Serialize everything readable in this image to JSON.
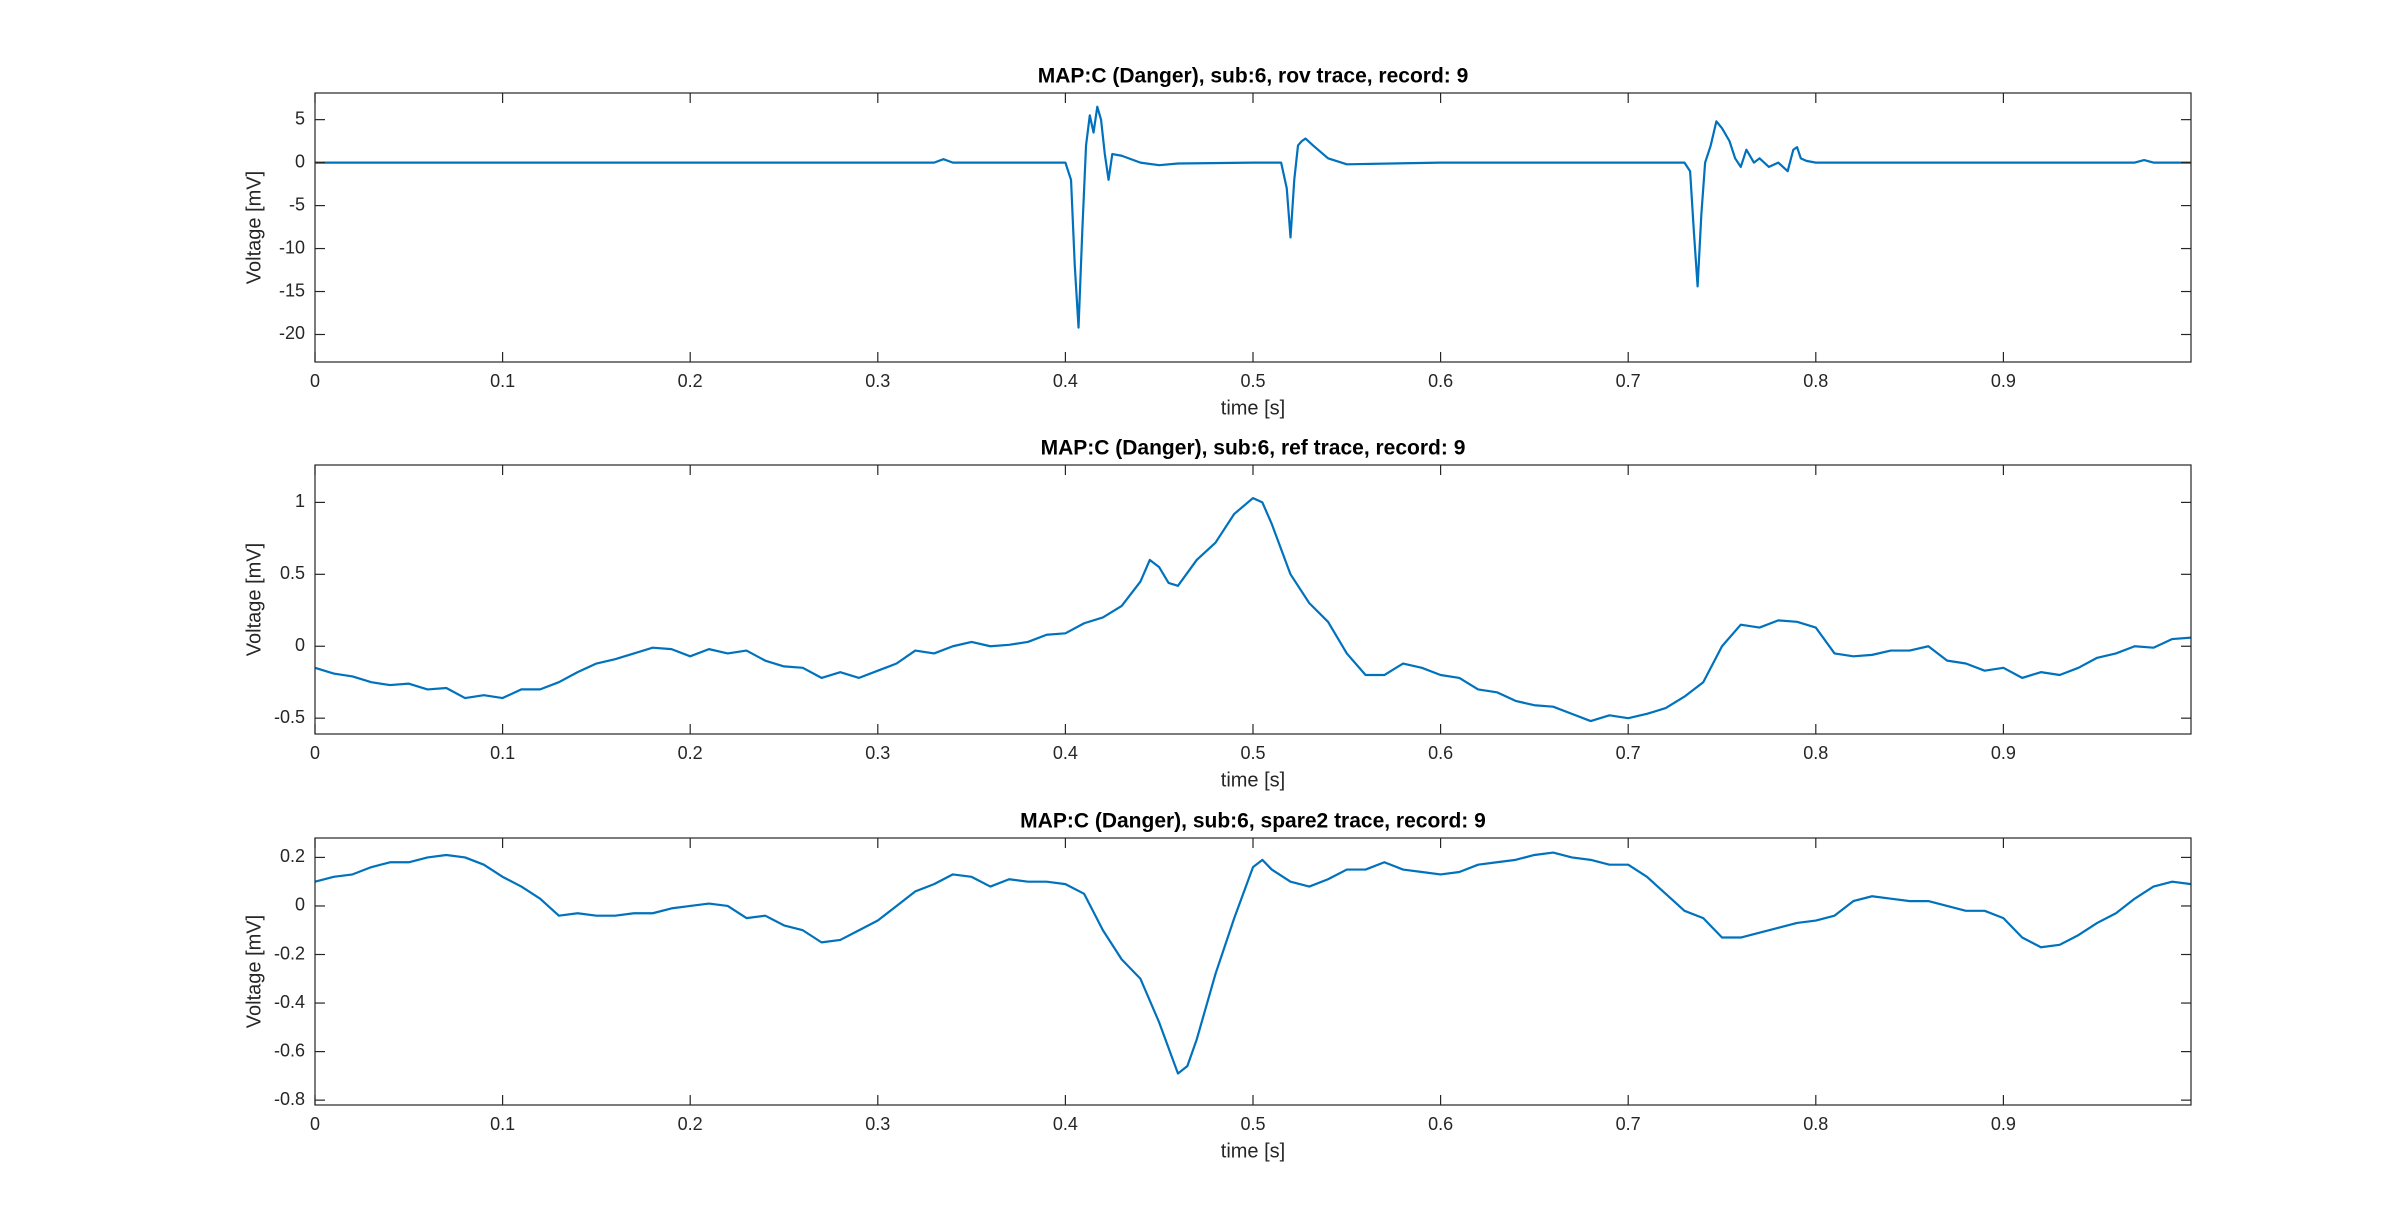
{
  "chart_data": [
    {
      "type": "line",
      "title": "MAP:C (Danger), sub:6, rov trace, record: 9",
      "xlabel": "time [s]",
      "ylabel": "Voltage [mV]",
      "x": [
        0,
        0.1,
        0.2,
        0.3,
        0.33,
        0.335,
        0.34,
        0.4,
        0.403,
        0.405,
        0.407,
        0.409,
        0.411,
        0.413,
        0.415,
        0.417,
        0.419,
        0.421,
        0.423,
        0.425,
        0.43,
        0.44,
        0.45,
        0.46,
        0.5,
        0.515,
        0.518,
        0.52,
        0.522,
        0.524,
        0.526,
        0.528,
        0.532,
        0.54,
        0.55,
        0.6,
        0.7,
        0.73,
        0.733,
        0.735,
        0.737,
        0.739,
        0.741,
        0.744,
        0.747,
        0.75,
        0.754,
        0.757,
        0.76,
        0.763,
        0.767,
        0.77,
        0.775,
        0.78,
        0.785,
        0.788,
        0.79,
        0.792,
        0.795,
        0.8,
        0.9,
        0.97,
        0.975,
        0.98,
        1.0
      ],
      "series": [
        {
          "color": "#0072bd",
          "values": [
            0,
            0,
            0,
            0,
            0,
            0.4,
            0,
            0,
            -2,
            -12,
            -19.2,
            -8,
            2,
            5.5,
            3.5,
            6.5,
            5,
            1,
            -2,
            1,
            0.8,
            0,
            -0.3,
            -0.1,
            0,
            0,
            -3,
            -8.7,
            -2,
            2,
            2.5,
            2.8,
            2,
            0.5,
            -0.2,
            0,
            0,
            0,
            -1,
            -8,
            -14.4,
            -6,
            0,
            2,
            4.8,
            4,
            2.5,
            0.5,
            -0.5,
            1.5,
            0,
            0.5,
            -0.5,
            0,
            -1,
            1.5,
            1.8,
            0.5,
            0.2,
            0,
            0,
            0,
            0.3,
            0,
            0
          ]
        }
      ],
      "xlim": [
        0,
        1
      ],
      "ylim": [
        -23.2,
        8.1
      ],
      "xticks": [
        0,
        0.1,
        0.2,
        0.3,
        0.4,
        0.5,
        0.6,
        0.7,
        0.8,
        0.9
      ],
      "yticks": [
        -20,
        -15,
        -10,
        -5,
        0,
        5
      ]
    },
    {
      "type": "line",
      "title": "MAP:C (Danger), sub:6, ref trace, record: 9",
      "xlabel": "time [s]",
      "ylabel": "Voltage [mV]",
      "x": [
        0,
        0.01,
        0.02,
        0.03,
        0.04,
        0.05,
        0.06,
        0.07,
        0.08,
        0.09,
        0.1,
        0.11,
        0.12,
        0.13,
        0.14,
        0.15,
        0.16,
        0.17,
        0.18,
        0.19,
        0.2,
        0.21,
        0.22,
        0.23,
        0.24,
        0.25,
        0.26,
        0.27,
        0.28,
        0.29,
        0.3,
        0.31,
        0.32,
        0.33,
        0.34,
        0.35,
        0.36,
        0.37,
        0.38,
        0.39,
        0.4,
        0.41,
        0.42,
        0.43,
        0.44,
        0.445,
        0.45,
        0.455,
        0.46,
        0.47,
        0.48,
        0.49,
        0.5,
        0.505,
        0.51,
        0.52,
        0.53,
        0.54,
        0.55,
        0.56,
        0.57,
        0.58,
        0.59,
        0.6,
        0.61,
        0.62,
        0.63,
        0.64,
        0.65,
        0.66,
        0.67,
        0.68,
        0.69,
        0.7,
        0.71,
        0.72,
        0.73,
        0.74,
        0.75,
        0.76,
        0.77,
        0.78,
        0.79,
        0.8,
        0.81,
        0.82,
        0.83,
        0.84,
        0.85,
        0.86,
        0.87,
        0.88,
        0.89,
        0.9,
        0.91,
        0.92,
        0.93,
        0.94,
        0.95,
        0.96,
        0.97,
        0.98,
        0.99,
        1.0
      ],
      "series": [
        {
          "color": "#0072bd",
          "values": [
            -0.15,
            -0.19,
            -0.21,
            -0.25,
            -0.27,
            -0.26,
            -0.3,
            -0.29,
            -0.36,
            -0.34,
            -0.36,
            -0.3,
            -0.3,
            -0.25,
            -0.18,
            -0.12,
            -0.09,
            -0.05,
            -0.01,
            -0.02,
            -0.07,
            -0.02,
            -0.05,
            -0.03,
            -0.1,
            -0.14,
            -0.15,
            -0.22,
            -0.18,
            -0.22,
            -0.17,
            -0.12,
            -0.03,
            -0.05,
            0,
            0.03,
            0,
            0.01,
            0.03,
            0.08,
            0.09,
            0.16,
            0.2,
            0.28,
            0.45,
            0.6,
            0.55,
            0.44,
            0.42,
            0.6,
            0.72,
            0.92,
            1.03,
            1.0,
            0.85,
            0.5,
            0.3,
            0.17,
            -0.05,
            -0.2,
            -0.2,
            -0.12,
            -0.15,
            -0.2,
            -0.22,
            -0.3,
            -0.32,
            -0.38,
            -0.41,
            -0.42,
            -0.47,
            -0.52,
            -0.48,
            -0.5,
            -0.47,
            -0.43,
            -0.35,
            -0.25,
            0,
            0.15,
            0.13,
            0.18,
            0.17,
            0.13,
            -0.05,
            -0.07,
            -0.06,
            -0.03,
            -0.03,
            0,
            -0.1,
            -0.12,
            -0.17,
            -0.15,
            -0.22,
            -0.18,
            -0.2,
            -0.15,
            -0.08,
            -0.05,
            0,
            -0.01,
            0.05,
            0.06
          ]
        }
      ],
      "xlim": [
        0,
        1
      ],
      "ylim": [
        -0.61,
        1.26
      ],
      "xticks": [
        0,
        0.1,
        0.2,
        0.3,
        0.4,
        0.5,
        0.6,
        0.7,
        0.8,
        0.9
      ],
      "yticks": [
        -0.5,
        0,
        0.5,
        1
      ]
    },
    {
      "type": "line",
      "title": "MAP:C (Danger), sub:6, spare2 trace, record: 9",
      "xlabel": "time [s]",
      "ylabel": "Voltage [mV]",
      "x": [
        0,
        0.01,
        0.02,
        0.03,
        0.04,
        0.05,
        0.06,
        0.07,
        0.08,
        0.09,
        0.1,
        0.11,
        0.12,
        0.13,
        0.14,
        0.15,
        0.16,
        0.17,
        0.18,
        0.19,
        0.2,
        0.21,
        0.22,
        0.23,
        0.24,
        0.25,
        0.26,
        0.27,
        0.28,
        0.29,
        0.3,
        0.31,
        0.32,
        0.33,
        0.34,
        0.35,
        0.36,
        0.37,
        0.38,
        0.39,
        0.4,
        0.41,
        0.42,
        0.43,
        0.44,
        0.45,
        0.46,
        0.465,
        0.47,
        0.48,
        0.49,
        0.5,
        0.505,
        0.51,
        0.52,
        0.53,
        0.54,
        0.55,
        0.56,
        0.57,
        0.58,
        0.59,
        0.6,
        0.61,
        0.62,
        0.63,
        0.64,
        0.65,
        0.66,
        0.67,
        0.68,
        0.69,
        0.7,
        0.71,
        0.72,
        0.73,
        0.74,
        0.75,
        0.76,
        0.77,
        0.78,
        0.79,
        0.8,
        0.81,
        0.82,
        0.83,
        0.84,
        0.85,
        0.86,
        0.87,
        0.88,
        0.89,
        0.9,
        0.91,
        0.92,
        0.93,
        0.94,
        0.95,
        0.96,
        0.97,
        0.98,
        0.99,
        1.0
      ],
      "series": [
        {
          "color": "#0072bd",
          "values": [
            0.1,
            0.12,
            0.13,
            0.16,
            0.18,
            0.18,
            0.2,
            0.21,
            0.2,
            0.17,
            0.12,
            0.08,
            0.03,
            -0.04,
            -0.03,
            -0.04,
            -0.04,
            -0.03,
            -0.03,
            -0.01,
            0,
            0.01,
            0,
            -0.05,
            -0.04,
            -0.08,
            -0.1,
            -0.15,
            -0.14,
            -0.1,
            -0.06,
            0,
            0.06,
            0.09,
            0.13,
            0.12,
            0.08,
            0.11,
            0.1,
            0.1,
            0.09,
            0.05,
            -0.1,
            -0.22,
            -0.3,
            -0.48,
            -0.69,
            -0.66,
            -0.55,
            -0.28,
            -0.05,
            0.16,
            0.19,
            0.15,
            0.1,
            0.08,
            0.11,
            0.15,
            0.15,
            0.18,
            0.15,
            0.14,
            0.13,
            0.14,
            0.17,
            0.18,
            0.19,
            0.21,
            0.22,
            0.2,
            0.19,
            0.17,
            0.17,
            0.12,
            0.05,
            -0.02,
            -0.05,
            -0.13,
            -0.13,
            -0.11,
            -0.09,
            -0.07,
            -0.06,
            -0.04,
            0.02,
            0.04,
            0.03,
            0.02,
            0.02,
            0,
            -0.02,
            -0.02,
            -0.05,
            -0.13,
            -0.17,
            -0.16,
            -0.12,
            -0.07,
            -0.03,
            0.03,
            0.08,
            0.1,
            0.09
          ]
        }
      ],
      "xlim": [
        0,
        1
      ],
      "ylim": [
        -0.82,
        0.28
      ],
      "xticks": [
        0,
        0.1,
        0.2,
        0.3,
        0.4,
        0.5,
        0.6,
        0.7,
        0.8,
        0.9
      ],
      "yticks": [
        -0.8,
        -0.6,
        -0.4,
        -0.2,
        0,
        0.2
      ]
    }
  ]
}
